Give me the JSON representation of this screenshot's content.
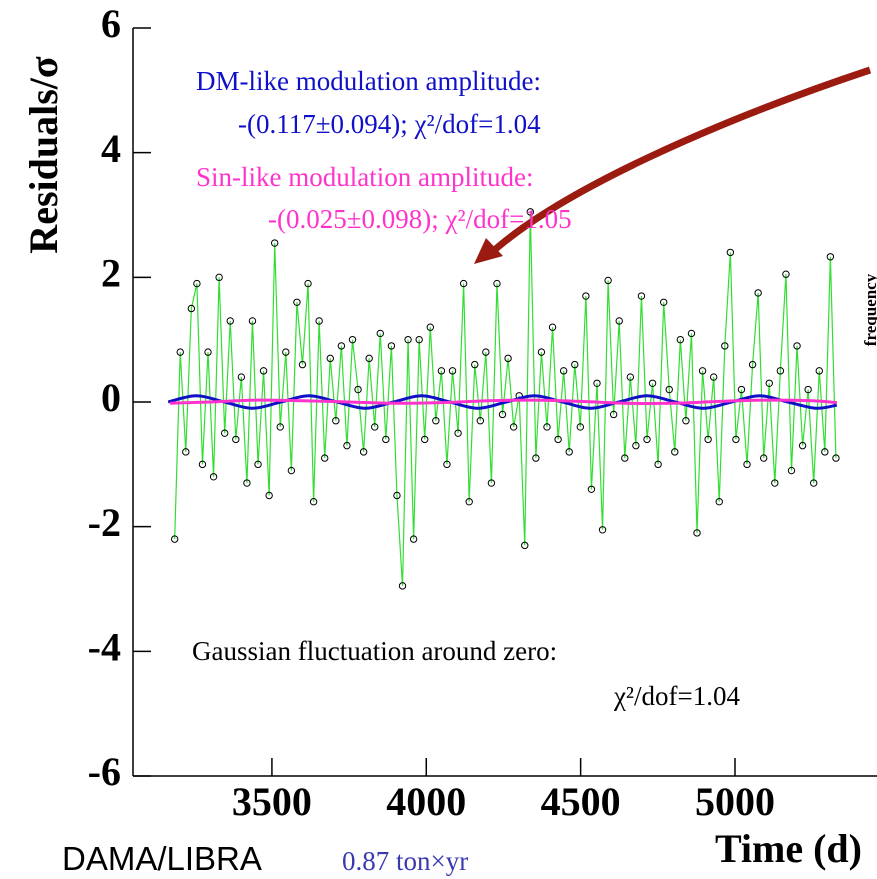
{
  "chart_data": {
    "type": "line",
    "y_label": "Residuals/σ",
    "x_label": "Time (d)",
    "right_label": "frequency",
    "footer": [
      "DAMA/LIBRA",
      "0.87 ton×yr"
    ],
    "annotations": [
      {
        "text": "DM-like modulation amplitude:",
        "color": "#1010c8"
      },
      {
        "text": "-(0.117±0.094);   χ²/dof=1.04",
        "color": "#1010c8"
      },
      {
        "text": "Sin-like modulation amplitude:",
        "color": "#ff33cc"
      },
      {
        "text": "-(0.025±0.098);   χ²/dof=1.05",
        "color": "#ff33cc"
      },
      {
        "text": "Gaussian fluctuation around zero:",
        "color": "#000000"
      },
      {
        "text": "χ²/dof=1.04",
        "color": "#000000"
      }
    ],
    "xlim": [
      3050,
      5460
    ],
    "ylim": [
      -6,
      6
    ],
    "xticks": [
      3500,
      4000,
      4500,
      5000
    ],
    "yticks": [
      -6,
      -4,
      -2,
      0,
      2,
      4,
      6
    ],
    "series": [
      {
        "color": "#33dd33",
        "marker_color": "#000000",
        "x": [
          3185,
          3203,
          3221,
          3239,
          3257,
          3275,
          3293,
          3311,
          3329,
          3347,
          3365,
          3383,
          3401,
          3419,
          3437,
          3455,
          3473,
          3491,
          3509,
          3527,
          3545,
          3563,
          3581,
          3599,
          3617,
          3635,
          3653,
          3671,
          3689,
          3707,
          3725,
          3743,
          3761,
          3779,
          3797,
          3815,
          3833,
          3851,
          3869,
          3887,
          3905,
          3923,
          3941,
          3959,
          3977,
          3995,
          4013,
          4031,
          4049,
          4067,
          4085,
          4103,
          4121,
          4139,
          4157,
          4175,
          4193,
          4211,
          4229,
          4247,
          4265,
          4283,
          4301,
          4319,
          4337,
          4355,
          4373,
          4391,
          4409,
          4427,
          4445,
          4463,
          4481,
          4499,
          4517,
          4535,
          4553,
          4571,
          4589,
          4607,
          4625,
          4643,
          4661,
          4679,
          4697,
          4715,
          4733,
          4751,
          4769,
          4787,
          4805,
          4823,
          4841,
          4859,
          4877,
          4895,
          4913,
          4931,
          4949,
          4967,
          4985,
          5003,
          5021,
          5039,
          5057,
          5075,
          5093,
          5111,
          5129,
          5147,
          5165,
          5183,
          5201,
          5219,
          5237,
          5255,
          5273,
          5291,
          5309,
          5327
        ],
        "values": [
          -2.2,
          0.8,
          -0.8,
          1.5,
          1.9,
          -1.0,
          0.8,
          -1.2,
          2.0,
          -0.5,
          1.3,
          -0.6,
          0.4,
          -1.3,
          1.3,
          -1.0,
          0.5,
          -1.5,
          2.55,
          -0.4,
          0.8,
          -1.1,
          1.6,
          0.6,
          1.9,
          -1.6,
          1.3,
          -0.9,
          0.7,
          -0.3,
          0.9,
          -0.7,
          1.0,
          0.2,
          -0.8,
          0.7,
          -0.4,
          1.1,
          -0.6,
          0.9,
          -1.5,
          -2.95,
          1.0,
          -2.2,
          1.0,
          -0.6,
          1.2,
          -0.3,
          0.5,
          -1.0,
          0.5,
          -0.5,
          1.9,
          -1.6,
          0.6,
          -0.3,
          0.8,
          -1.3,
          1.9,
          -0.2,
          0.7,
          -0.4,
          0.1,
          -2.3,
          3.05,
          -0.9,
          0.8,
          -0.4,
          1.2,
          -0.6,
          0.5,
          -0.8,
          0.6,
          -0.4,
          1.7,
          -1.4,
          0.3,
          -2.05,
          1.95,
          -0.2,
          1.3,
          -0.9,
          0.4,
          -0.7,
          1.7,
          -0.6,
          0.3,
          -1.0,
          1.6,
          0.2,
          -0.8,
          1.0,
          -0.3,
          1.1,
          -2.1,
          0.5,
          -0.6,
          0.4,
          -1.6,
          0.9,
          2.4,
          -0.6,
          0.2,
          -1.0,
          0.6,
          1.75,
          -0.9,
          0.3,
          -1.3,
          0.5,
          2.05,
          -1.1,
          0.9,
          -0.7,
          0.2,
          -1.3,
          0.5,
          -0.8,
          2.33,
          -0.9
        ]
      },
      {
        "color": "#1010c8",
        "x": [
          3164,
          3255,
          3346,
          3437,
          3529,
          3620,
          3711,
          3802,
          3894,
          3985,
          4076,
          4167,
          4259,
          4350,
          4441,
          4532,
          4624,
          4715,
          4806,
          4897,
          4989,
          5080,
          5171,
          5262,
          5330
        ],
        "values": [
          0,
          0.1,
          0,
          -0.1,
          0,
          0.1,
          0,
          -0.1,
          0,
          0.1,
          0,
          -0.1,
          0,
          0.1,
          0,
          -0.1,
          0,
          0.1,
          0,
          -0.1,
          0,
          0.1,
          0,
          -0.1,
          -0.05
        ]
      },
      {
        "color": "#ff33cc",
        "x": [
          3170,
          3300,
          3450,
          3600,
          3750,
          3900,
          4050,
          4200,
          4350,
          4500,
          4650,
          4800,
          4950,
          5100,
          5250,
          5330
        ],
        "values": [
          -0.02,
          0,
          0.03,
          0.02,
          0,
          -0.02,
          -0.01,
          0.02,
          0.03,
          0.01,
          -0.02,
          -0.02,
          0.01,
          0.03,
          0.02,
          -0.01
        ]
      }
    ]
  }
}
